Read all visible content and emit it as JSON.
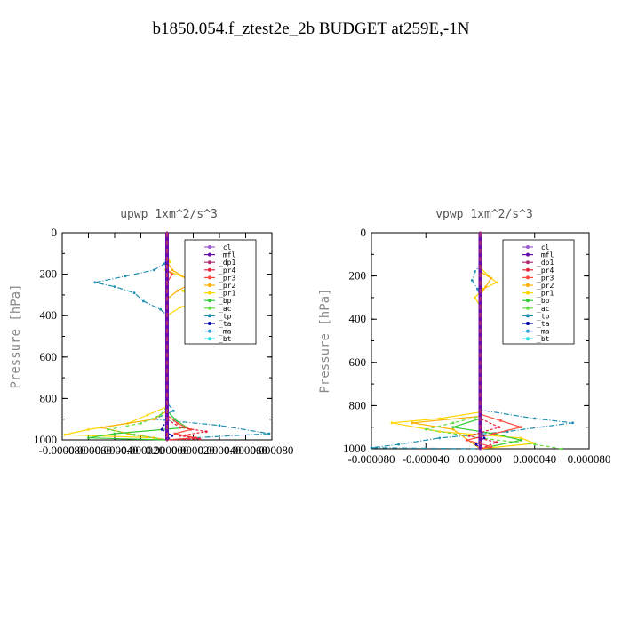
{
  "page_title": "b1850.054.f_ztest2e_2b  BUDGET at259E,-1N",
  "legend_entries": [
    {
      "label": "_cl",
      "color": "#9b59d0"
    },
    {
      "label": "_mfl",
      "color": "#6a0dad"
    },
    {
      "label": "_dp1",
      "color": "#b0306f"
    },
    {
      "label": "_pr4",
      "color": "#e8243c"
    },
    {
      "label": "_pr3",
      "color": "#ff4a3a"
    },
    {
      "label": "_pr2",
      "color": "#ffb000"
    },
    {
      "label": "_pr1",
      "color": "#ffd700"
    },
    {
      "label": "_bp",
      "color": "#33cc33"
    },
    {
      "label": "_ac",
      "color": "#66dd44"
    },
    {
      "label": "_tp",
      "color": "#1f8fb0"
    },
    {
      "label": "_ta",
      "color": "#0000aa"
    },
    {
      "label": "_ma",
      "color": "#3399cc"
    },
    {
      "label": "_bt",
      "color": "#22dddd"
    }
  ],
  "chart_data": [
    {
      "type": "line",
      "title": "upwp   1xm^2/s^3",
      "ylabel": "Pressure [hPa]",
      "xlabel": "",
      "ylim": [
        0,
        1000
      ],
      "y_inverted": true,
      "xlim": [
        -8e-05,
        8e-05
      ],
      "x_ticks": [
        -8e-05,
        -6e-05,
        -4e-05,
        -2e-05,
        0,
        2e-05,
        4e-05,
        6e-05,
        8e-05
      ],
      "x_tick_labels": [
        "-0.000080",
        "-0.000060",
        "-0.000040",
        "-0.000020",
        "0.000000",
        "0.000020",
        "0.000040",
        "0.000060",
        "0.000080"
      ],
      "y_ticks": [
        0,
        200,
        400,
        600,
        800,
        1000
      ],
      "y_tick_labels": [
        "0",
        "200",
        "400",
        "600",
        "800",
        "1000"
      ],
      "legend_position": "top-right",
      "grid": false,
      "series": [
        {
          "name": "_tp",
          "color": "#1f8fb0",
          "dash": "6,2,1,2",
          "points": [
            [
              0,
              0
            ],
            [
              0,
              100
            ],
            [
              -2e-06,
              150
            ],
            [
              -1e-05,
              180
            ],
            [
              -3.2e-05,
              210
            ],
            [
              -5.5e-05,
              240
            ],
            [
              -4e-05,
              260
            ],
            [
              -2.5e-05,
              290
            ],
            [
              -1.8e-05,
              330
            ],
            [
              -5e-06,
              370
            ],
            [
              0,
              400
            ],
            [
              0,
              820
            ],
            [
              5e-06,
              860
            ],
            [
              -1e-05,
              900
            ],
            [
              4e-05,
              930
            ],
            [
              7.8e-05,
              970
            ],
            [
              2e-05,
              990
            ],
            [
              0,
              1000
            ]
          ]
        },
        {
          "name": "_pr1",
          "color": "#ffd700",
          "dash": "",
          "points": [
            [
              0,
              0
            ],
            [
              0,
              100
            ],
            [
              2e-06,
              140
            ],
            [
              -1e-06,
              180
            ],
            [
              1.5e-05,
              220
            ],
            [
              2.8e-05,
              240
            ],
            [
              1.2e-05,
              280
            ],
            [
              2e-05,
              310
            ],
            [
              2.5e-05,
              330
            ],
            [
              1e-05,
              360
            ],
            [
              0,
              400
            ],
            [
              0,
              840
            ],
            [
              -1.5e-05,
              880
            ],
            [
              -3e-05,
              920
            ],
            [
              -6e-05,
              950
            ],
            [
              -7.8e-05,
              975
            ],
            [
              -1e-05,
              990
            ],
            [
              0,
              1000
            ]
          ]
        },
        {
          "name": "_pr2",
          "color": "#ffb000",
          "dash": "",
          "points": [
            [
              0,
              0
            ],
            [
              0,
              140
            ],
            [
              4e-06,
              180
            ],
            [
              2e-05,
              240
            ],
            [
              8e-06,
              280
            ],
            [
              0,
              320
            ],
            [
              0,
              860
            ],
            [
              -1e-05,
              900
            ],
            [
              -5e-05,
              940
            ],
            [
              -3e-05,
              970
            ],
            [
              0,
              1000
            ]
          ]
        },
        {
          "name": "_ac",
          "color": "#66dd44",
          "dash": "4,3",
          "points": [
            [
              0,
              0
            ],
            [
              0,
              840
            ],
            [
              -5e-06,
              880
            ],
            [
              -2e-05,
              920
            ],
            [
              -4.5e-05,
              950
            ],
            [
              -2.5e-05,
              975
            ],
            [
              0,
              1000
            ]
          ]
        },
        {
          "name": "_bp",
          "color": "#33cc33",
          "dash": "",
          "points": [
            [
              0,
              0
            ],
            [
              0,
              860
            ],
            [
              6e-06,
              900
            ],
            [
              1.5e-05,
              940
            ],
            [
              -4e-05,
              970
            ],
            [
              -6e-05,
              990
            ],
            [
              0,
              1000
            ]
          ]
        },
        {
          "name": "_pr3",
          "color": "#ff4a3a",
          "dash": "",
          "points": [
            [
              0,
              0
            ],
            [
              0,
              180
            ],
            [
              4e-06,
              200
            ],
            [
              0,
              240
            ],
            [
              0,
              880
            ],
            [
              8e-06,
              920
            ],
            [
              1.8e-05,
              950
            ],
            [
              6e-06,
              970
            ],
            [
              2.2e-05,
              990
            ],
            [
              0,
              1000
            ]
          ]
        },
        {
          "name": "_pr4",
          "color": "#e8243c",
          "dash": "3,2",
          "points": [
            [
              0,
              0
            ],
            [
              0,
              900
            ],
            [
              1e-05,
              940
            ],
            [
              3e-05,
              960
            ],
            [
              1e-05,
              980
            ],
            [
              2.5e-05,
              995
            ],
            [
              0,
              1000
            ]
          ]
        },
        {
          "name": "_ta",
          "color": "#0000aa",
          "dash": "2,2",
          "points": [
            [
              0,
              0
            ],
            [
              0,
              900
            ],
            [
              -4e-06,
              950
            ],
            [
              4e-06,
              980
            ],
            [
              0,
              1000
            ]
          ]
        },
        {
          "name": "_cl",
          "color": "#9b59d0",
          "dash": "",
          "points": [
            [
              0,
              0
            ],
            [
              0,
              1000
            ]
          ]
        },
        {
          "name": "_mfl",
          "color": "#6a0dad",
          "dash": "",
          "points": [
            [
              0,
              0
            ],
            [
              0,
              1000
            ]
          ]
        },
        {
          "name": "_dp1",
          "color": "#b0306f",
          "dash": "4,3",
          "points": [
            [
              0,
              0
            ],
            [
              0,
              1000
            ]
          ]
        }
      ]
    },
    {
      "type": "line",
      "title": "vpwp   1xm^2/s^3",
      "ylabel": "Pressure [hPa]",
      "xlabel": "",
      "ylim": [
        0,
        1000
      ],
      "y_inverted": true,
      "xlim": [
        -8e-05,
        8e-05
      ],
      "x_ticks": [
        -8e-05,
        -4e-05,
        0,
        4e-05,
        8e-05
      ],
      "x_tick_labels": [
        "-0.000080",
        "-0.000040",
        "0.000000",
        "0.000040",
        "0.000080"
      ],
      "y_ticks": [
        0,
        200,
        400,
        600,
        800,
        1000
      ],
      "y_tick_labels": [
        "0",
        "200",
        "400",
        "600",
        "800",
        "1000"
      ],
      "legend_position": "top-right",
      "grid": false,
      "series": [
        {
          "name": "_tp",
          "color": "#1f8fb0",
          "dash": "6,2,1,2",
          "points": [
            [
              0,
              0
            ],
            [
              0,
              150
            ],
            [
              -4e-06,
              180
            ],
            [
              -6e-06,
              220
            ],
            [
              -2e-06,
              260
            ],
            [
              0,
              300
            ],
            [
              0,
              820
            ],
            [
              4e-05,
              860
            ],
            [
              6.8e-05,
              880
            ],
            [
              2e-05,
              920
            ],
            [
              -3e-05,
              950
            ],
            [
              -6e-05,
              980
            ],
            [
              -8e-05,
              995
            ],
            [
              0,
              1000
            ]
          ]
        },
        {
          "name": "_pr1",
          "color": "#ffd700",
          "dash": "",
          "points": [
            [
              0,
              0
            ],
            [
              0,
              160
            ],
            [
              6e-06,
              200
            ],
            [
              1.2e-05,
              230
            ],
            [
              2e-06,
              260
            ],
            [
              -4e-06,
              300
            ],
            [
              0,
              340
            ],
            [
              0,
              830
            ],
            [
              -3e-05,
              860
            ],
            [
              -6.5e-05,
              880
            ],
            [
              -3e-05,
              920
            ],
            [
              3e-05,
              950
            ],
            [
              4e-05,
              975
            ],
            [
              0,
              1000
            ]
          ]
        },
        {
          "name": "_pr2",
          "color": "#ffb000",
          "dash": "",
          "points": [
            [
              0,
              0
            ],
            [
              0,
              180
            ],
            [
              8e-06,
              210
            ],
            [
              4e-06,
              250
            ],
            [
              0,
              290
            ],
            [
              0,
              850
            ],
            [
              -5e-05,
              880
            ],
            [
              -2e-05,
              910
            ],
            [
              0,
              1000
            ]
          ]
        },
        {
          "name": "_ac",
          "color": "#66dd44",
          "dash": "4,3",
          "points": [
            [
              0,
              0
            ],
            [
              0,
              850
            ],
            [
              -2e-05,
              880
            ],
            [
              -4e-05,
              910
            ],
            [
              0,
              950
            ],
            [
              4e-05,
              980
            ],
            [
              6e-05,
              1000
            ]
          ]
        },
        {
          "name": "_bp",
          "color": "#33cc33",
          "dash": "",
          "points": [
            [
              0,
              0
            ],
            [
              0,
              860
            ],
            [
              -2e-05,
              900
            ],
            [
              1e-05,
              930
            ],
            [
              3e-05,
              960
            ],
            [
              0,
              1000
            ]
          ]
        },
        {
          "name": "_pr3",
          "color": "#ff4a3a",
          "dash": "",
          "points": [
            [
              0,
              0
            ],
            [
              0,
              840
            ],
            [
              1.5e-05,
              870
            ],
            [
              3e-05,
              900
            ],
            [
              1e-05,
              930
            ],
            [
              -1e-05,
              960
            ],
            [
              8e-06,
              990
            ],
            [
              0,
              1000
            ]
          ]
        },
        {
          "name": "_pr4",
          "color": "#e8243c",
          "dash": "3,2",
          "points": [
            [
              0,
              0
            ],
            [
              0,
              860
            ],
            [
              1.4e-05,
              900
            ],
            [
              -8e-06,
              940
            ],
            [
              1.2e-05,
              970
            ],
            [
              0,
              1000
            ]
          ]
        },
        {
          "name": "_ta",
          "color": "#0000aa",
          "dash": "2,2",
          "points": [
            [
              0,
              0
            ],
            [
              0,
              900
            ],
            [
              3e-06,
              950
            ],
            [
              -3e-06,
              980
            ],
            [
              0,
              1000
            ]
          ]
        },
        {
          "name": "_cl",
          "color": "#9b59d0",
          "dash": "",
          "points": [
            [
              0,
              0
            ],
            [
              0,
              1000
            ]
          ]
        },
        {
          "name": "_mfl",
          "color": "#6a0dad",
          "dash": "",
          "points": [
            [
              0,
              0
            ],
            [
              0,
              1000
            ]
          ]
        },
        {
          "name": "_dp1",
          "color": "#b0306f",
          "dash": "4,3",
          "points": [
            [
              0,
              0
            ],
            [
              0,
              1000
            ]
          ]
        }
      ]
    }
  ]
}
